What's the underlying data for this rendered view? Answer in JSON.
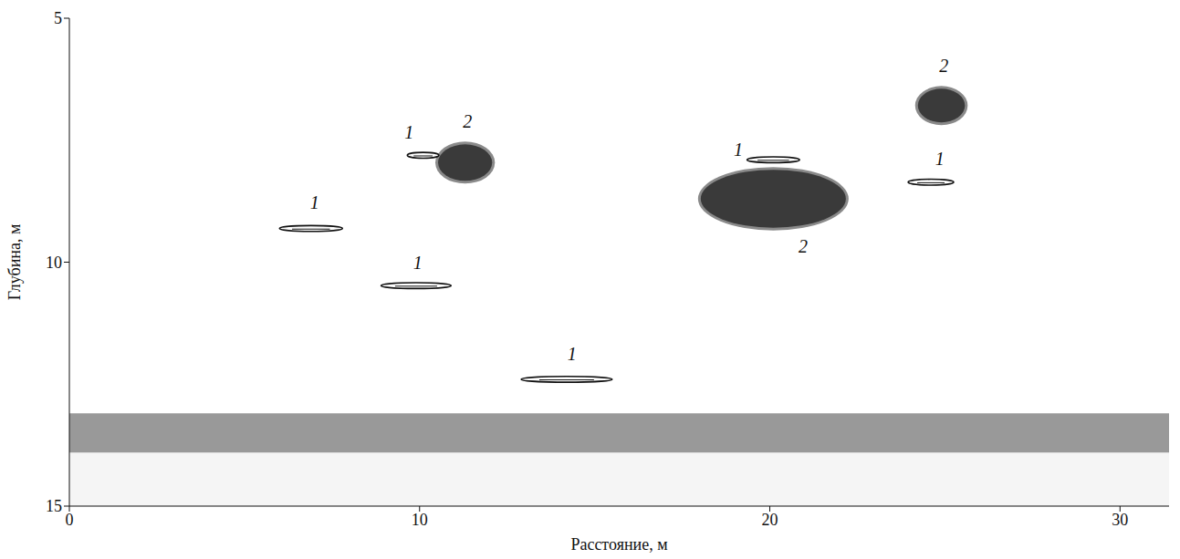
{
  "chart_data": {
    "type": "echogram",
    "x_label": "Расстояние, м",
    "y_label": "Глубина, м",
    "xlim": [
      0,
      31.4
    ],
    "ylim": [
      5,
      15
    ],
    "xticks": [
      0,
      10,
      20,
      30
    ],
    "yticks": [
      5,
      10,
      15
    ],
    "grid": false,
    "fish": [
      {
        "x": 6.9,
        "y": 9.31,
        "length": 1.8
      },
      {
        "x": 9.9,
        "y": 10.48,
        "length": 2.0
      },
      {
        "x": 14.2,
        "y": 12.4,
        "length": 2.6
      },
      {
        "x": 10.1,
        "y": 7.81,
        "length": 0.9
      },
      {
        "x": 20.1,
        "y": 7.9,
        "length": 1.5
      },
      {
        "x": 24.6,
        "y": 8.36,
        "length": 1.3
      }
    ],
    "schools": [
      {
        "x": 11.3,
        "y": 7.96,
        "width": 1.7,
        "height": 0.86
      },
      {
        "x": 20.1,
        "y": 8.7,
        "width": 4.3,
        "height": 1.3
      },
      {
        "x": 24.9,
        "y": 6.79,
        "width": 1.5,
        "height": 0.8
      }
    ],
    "bottom": {
      "top": 13.1,
      "bottom": 13.9
    },
    "annotations": [
      {
        "text": "1",
        "x": 7.0,
        "y": 8.83
      },
      {
        "text": "1",
        "x": 9.95,
        "y": 10.06
      },
      {
        "text": "1",
        "x": 14.35,
        "y": 11.93
      },
      {
        "text": "1",
        "x": 9.7,
        "y": 7.39
      },
      {
        "text": "2",
        "x": 11.37,
        "y": 7.16
      },
      {
        "text": "1",
        "x": 19.1,
        "y": 7.73
      },
      {
        "text": "2",
        "x": 20.95,
        "y": 9.71
      },
      {
        "text": "2",
        "x": 24.97,
        "y": 6.01
      },
      {
        "text": "1",
        "x": 24.85,
        "y": 7.92
      }
    ]
  }
}
